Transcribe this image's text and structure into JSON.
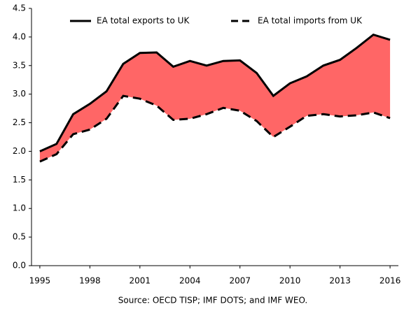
{
  "chart_data": {
    "type": "line",
    "x": [
      1995,
      1996,
      1997,
      1998,
      1999,
      2000,
      2001,
      2002,
      2003,
      2004,
      2005,
      2006,
      2007,
      2008,
      2009,
      2010,
      2011,
      2012,
      2013,
      2014,
      2015,
      2016
    ],
    "series": [
      {
        "name": "EA total exports to UK",
        "color": "#000000",
        "dash": "solid",
        "values": [
          2.0,
          2.13,
          2.65,
          2.83,
          3.05,
          3.53,
          3.72,
          3.73,
          3.48,
          3.58,
          3.5,
          3.58,
          3.59,
          3.37,
          2.97,
          3.19,
          3.31,
          3.5,
          3.6,
          3.81,
          4.04,
          3.95
        ]
      },
      {
        "name": "EA total imports from UK",
        "color": "#000000",
        "dash": "dashed",
        "values": [
          1.82,
          1.95,
          2.3,
          2.38,
          2.57,
          2.97,
          2.92,
          2.8,
          2.55,
          2.57,
          2.65,
          2.76,
          2.71,
          2.53,
          2.25,
          2.43,
          2.62,
          2.65,
          2.61,
          2.63,
          2.68,
          2.58
        ]
      }
    ],
    "fill_between_color": "#ff6666",
    "xlim": [
      1994.5,
      2016.5
    ],
    "xticks": [
      1995,
      1998,
      2001,
      2004,
      2007,
      2010,
      2013,
      2016
    ],
    "ylim": [
      0,
      4.5
    ],
    "yticks": [
      {
        "value": 0,
        "label": "0.0"
      },
      {
        "value": 0.5,
        "label": "0.5"
      },
      {
        "value": 1,
        "label": "1.0"
      },
      {
        "value": 1.5,
        "label": "1.5"
      },
      {
        "value": 2,
        "label": "2.0"
      },
      {
        "value": 2.5,
        "label": "2.5"
      },
      {
        "value": 3,
        "label": "3.0"
      },
      {
        "value": 3.5,
        "label": "3.5"
      },
      {
        "value": 4,
        "label": "4.0"
      },
      {
        "value": 4.5,
        "label": "4.5"
      }
    ],
    "grid": false,
    "legend": "top",
    "source": "Source: OECD TISP; IMF DOTS; and IMF WEO."
  }
}
